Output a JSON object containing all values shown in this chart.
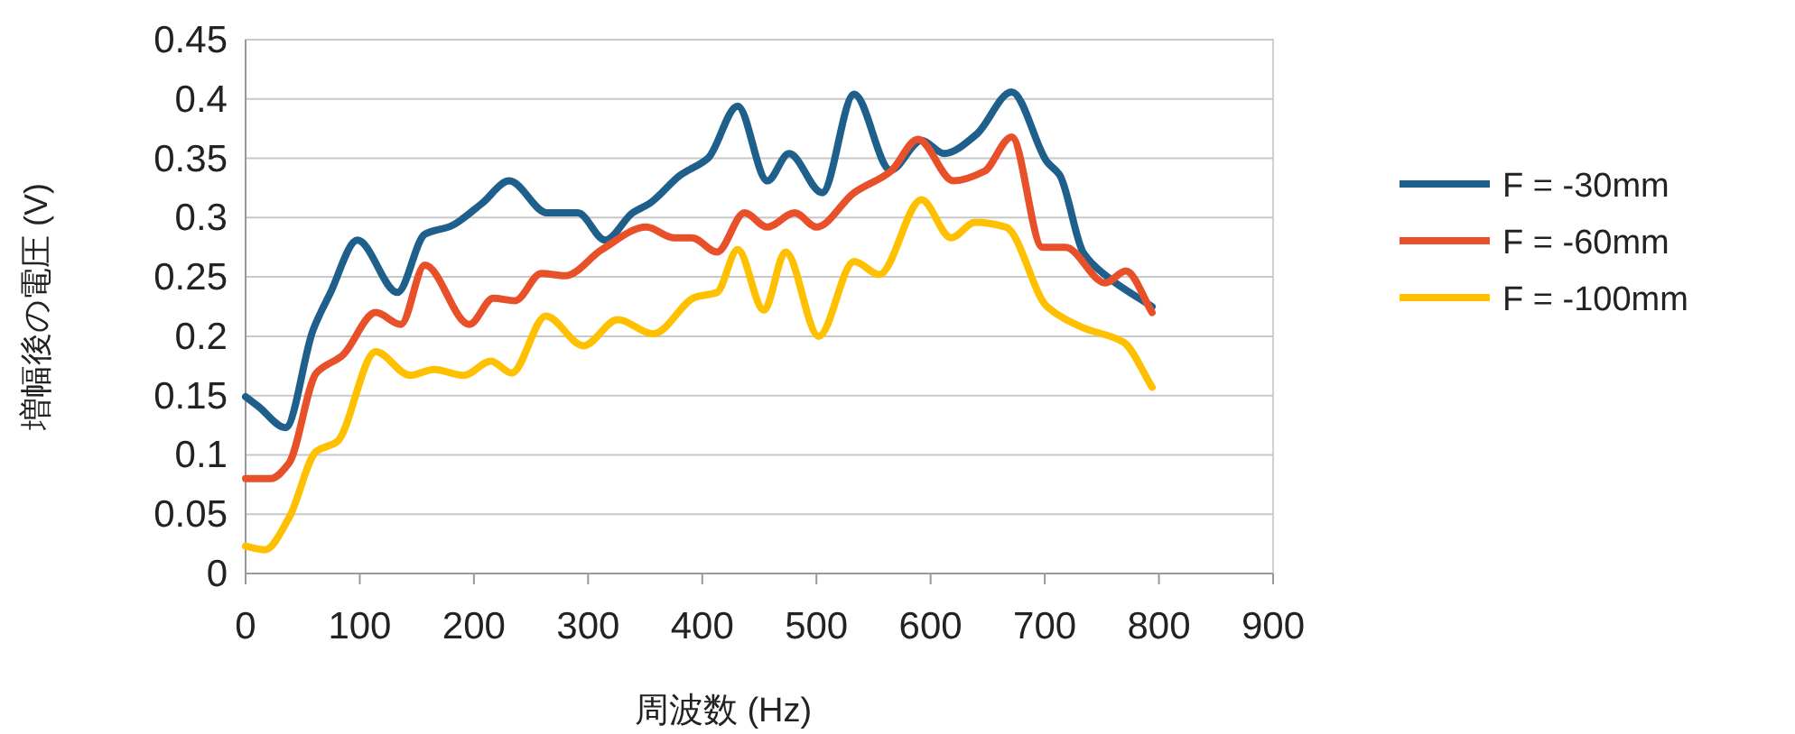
{
  "chart_data": {
    "type": "line",
    "xlabel": "周波数 (Hz)",
    "ylabel": "増幅後の電圧 (V)",
    "xlim": [
      0,
      900
    ],
    "ylim": [
      0,
      0.45
    ],
    "xticks": [
      0,
      100,
      200,
      300,
      400,
      500,
      600,
      700,
      800,
      900
    ],
    "yticks": [
      0,
      0.05,
      0.1,
      0.15,
      0.2,
      0.25,
      0.3,
      0.35,
      0.4,
      0.45
    ],
    "grid": "y",
    "legend": "right",
    "marker": "none",
    "line_style": "solid",
    "series": [
      {
        "name": "F = -30mm",
        "color": "#1f5f8b",
        "x": [
          0,
          11,
          35,
          59,
          74,
          98,
          133,
          157,
          180,
          207,
          231,
          264,
          291,
          315,
          339,
          354,
          381,
          405,
          431,
          457,
          476,
          505,
          533,
          565,
          592,
          612,
          640,
          671,
          702,
          713,
          734,
          755,
          794
        ],
        "values": [
          0.149,
          0.141,
          0.123,
          0.205,
          0.236,
          0.281,
          0.237,
          0.286,
          0.293,
          0.312,
          0.331,
          0.304,
          0.304,
          0.281,
          0.304,
          0.312,
          0.336,
          0.35,
          0.394,
          0.331,
          0.354,
          0.321,
          0.404,
          0.34,
          0.365,
          0.354,
          0.37,
          0.406,
          0.347,
          0.336,
          0.27,
          0.25,
          0.225
        ]
      },
      {
        "name": "F = -60mm",
        "color": "#e8502a",
        "x": [
          0,
          22,
          38,
          62,
          85,
          114,
          136,
          157,
          196,
          217,
          236,
          259,
          280,
          312,
          351,
          375,
          391,
          413,
          437,
          457,
          481,
          500,
          533,
          565,
          589,
          620,
          647,
          671,
          698,
          718,
          753,
          771,
          794
        ],
        "values": [
          0.08,
          0.08,
          0.093,
          0.169,
          0.184,
          0.22,
          0.21,
          0.26,
          0.21,
          0.232,
          0.23,
          0.253,
          0.251,
          0.273,
          0.292,
          0.283,
          0.283,
          0.271,
          0.304,
          0.292,
          0.304,
          0.292,
          0.321,
          0.339,
          0.366,
          0.331,
          0.339,
          0.368,
          0.275,
          0.275,
          0.245,
          0.255,
          0.22
        ]
      },
      {
        "name": "F = -100mm",
        "color": "#ffc000",
        "x": [
          0,
          17,
          38,
          62,
          80,
          114,
          144,
          165,
          191,
          215,
          233,
          263,
          296,
          326,
          357,
          394,
          413,
          431,
          454,
          473,
          502,
          533,
          555,
          592,
          618,
          639,
          666,
          702,
          734,
          769,
          794
        ],
        "values": [
          0.023,
          0.02,
          0.047,
          0.103,
          0.111,
          0.187,
          0.167,
          0.172,
          0.167,
          0.179,
          0.169,
          0.217,
          0.192,
          0.214,
          0.202,
          0.233,
          0.237,
          0.273,
          0.222,
          0.271,
          0.2,
          0.263,
          0.252,
          0.315,
          0.283,
          0.296,
          0.292,
          0.225,
          0.207,
          0.195,
          0.157
        ]
      }
    ]
  }
}
